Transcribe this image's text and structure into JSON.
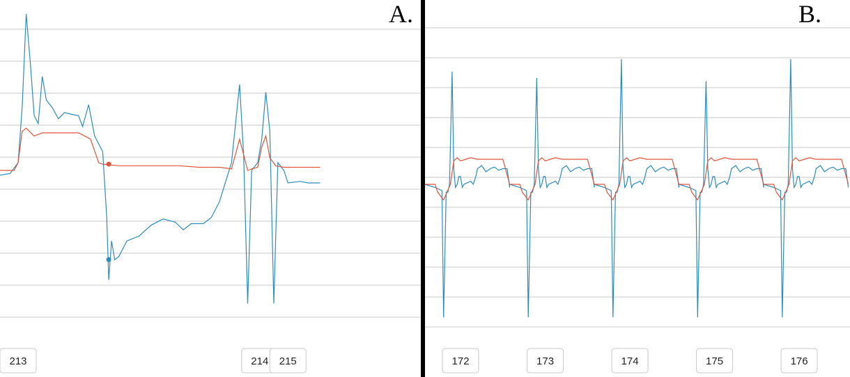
{
  "chart_data": [
    {
      "type": "line",
      "panel_label": "A.",
      "grid": true,
      "colors": {
        "blue": "#2b8cbe",
        "red": "#e0543a",
        "grid": "#c8c8c8"
      },
      "tick_labels": [
        "213",
        "214",
        "215"
      ],
      "tick_positions": [
        0.0,
        0.6,
        0.67
      ],
      "x_range": [
        -0.045,
        1.0
      ],
      "y_range": [
        -1.0,
        1.0
      ],
      "series": [
        {
          "color": "#2b8cbe",
          "points": [
            [
              -0.045,
              -0.03
            ],
            [
              -0.02,
              -0.02
            ],
            [
              0.0,
              0.05
            ],
            [
              0.01,
              0.4
            ],
            [
              0.02,
              1.0
            ],
            [
              0.03,
              0.7
            ],
            [
              0.04,
              0.35
            ],
            [
              0.05,
              0.3
            ],
            [
              0.06,
              0.6
            ],
            [
              0.07,
              0.45
            ],
            [
              0.085,
              0.4
            ],
            [
              0.1,
              0.33
            ],
            [
              0.115,
              0.37
            ],
            [
              0.13,
              0.36
            ],
            [
              0.15,
              0.35
            ],
            [
              0.16,
              0.28
            ],
            [
              0.175,
              0.42
            ],
            [
              0.19,
              0.22
            ],
            [
              0.21,
              0.12
            ],
            [
              0.22,
              -0.3
            ],
            [
              0.225,
              -0.7
            ],
            [
              0.232,
              -0.45
            ],
            [
              0.24,
              -0.57
            ],
            [
              0.25,
              -0.55
            ],
            [
              0.27,
              -0.45
            ],
            [
              0.3,
              -0.42
            ],
            [
              0.33,
              -0.35
            ],
            [
              0.36,
              -0.31
            ],
            [
              0.39,
              -0.33
            ],
            [
              0.41,
              -0.38
            ],
            [
              0.43,
              -0.34
            ],
            [
              0.46,
              -0.34
            ],
            [
              0.48,
              -0.3
            ],
            [
              0.5,
              -0.2
            ],
            [
              0.53,
              0.05
            ],
            [
              0.55,
              0.55
            ],
            [
              0.56,
              0.1
            ],
            [
              0.57,
              -0.85
            ],
            [
              0.58,
              0.0
            ],
            [
              0.595,
              0.05
            ],
            [
              0.605,
              0.2
            ],
            [
              0.615,
              0.5
            ],
            [
              0.625,
              0.25
            ],
            [
              0.635,
              -0.85
            ],
            [
              0.645,
              0.05
            ],
            [
              0.66,
              0.0
            ],
            [
              0.67,
              -0.08
            ],
            [
              0.7,
              -0.07
            ],
            [
              0.72,
              -0.08
            ],
            [
              0.75,
              -0.08
            ]
          ]
        },
        {
          "color": "#e0543a",
          "points": [
            [
              -0.045,
              0.0
            ],
            [
              -0.01,
              0.0
            ],
            [
              0.0,
              0.05
            ],
            [
              0.01,
              0.25
            ],
            [
              0.02,
              0.27
            ],
            [
              0.04,
              0.22
            ],
            [
              0.06,
              0.24
            ],
            [
              0.1,
              0.24
            ],
            [
              0.15,
              0.24
            ],
            [
              0.18,
              0.2
            ],
            [
              0.2,
              0.05
            ],
            [
              0.21,
              0.04
            ],
            [
              0.25,
              0.03
            ],
            [
              0.3,
              0.03
            ],
            [
              0.35,
              0.03
            ],
            [
              0.4,
              0.03
            ],
            [
              0.45,
              0.02
            ],
            [
              0.5,
              0.02
            ],
            [
              0.53,
              0.01
            ],
            [
              0.55,
              0.2
            ],
            [
              0.56,
              0.1
            ],
            [
              0.57,
              0.0
            ],
            [
              0.58,
              0.01
            ],
            [
              0.595,
              0.02
            ],
            [
              0.605,
              0.15
            ],
            [
              0.615,
              0.22
            ],
            [
              0.625,
              0.08
            ],
            [
              0.64,
              0.03
            ],
            [
              0.66,
              0.02
            ],
            [
              0.7,
              0.02
            ],
            [
              0.75,
              0.02
            ]
          ],
          "markers": [
            [
              0.225,
              0.04
            ]
          ]
        }
      ],
      "blue_markers": [
        [
          0.225,
          -0.57
        ]
      ]
    },
    {
      "type": "line",
      "panel_label": "B.",
      "grid": true,
      "colors": {
        "blue": "#2b8cbe",
        "red": "#e0543a",
        "grid": "#c8c8c8"
      },
      "tick_labels": [
        "172",
        "173",
        "174",
        "175",
        "176"
      ],
      "tick_positions": [
        0.0,
        1.0,
        2.0,
        3.0,
        4.0
      ],
      "x_range": [
        -0.42,
        4.6
      ],
      "y_range": [
        -1.0,
        1.0
      ],
      "series": [
        {
          "color": "#2b8cbe",
          "cycle_shape": [
            [
              -0.42,
              0.0
            ],
            [
              -0.3,
              -0.02
            ],
            [
              -0.22,
              -0.04
            ],
            [
              -0.2,
              -0.85
            ],
            [
              -0.17,
              -0.05
            ],
            [
              -0.15,
              -0.05
            ],
            [
              -0.13,
              0.0
            ],
            [
              -0.1,
              0.35
            ],
            [
              -0.08,
              0.1
            ],
            [
              -0.06,
              -0.02
            ],
            [
              -0.04,
              0.0
            ],
            [
              -0.02,
              0.05
            ],
            [
              0.0,
              0.05
            ],
            [
              0.02,
              -0.02
            ],
            [
              0.04,
              0.0
            ],
            [
              0.08,
              0.01
            ],
            [
              0.12,
              0.02
            ],
            [
              0.15,
              0.0
            ],
            [
              0.18,
              0.05
            ],
            [
              0.2,
              0.1
            ],
            [
              0.25,
              0.12
            ],
            [
              0.3,
              0.08
            ],
            [
              0.35,
              0.1
            ],
            [
              0.4,
              0.11
            ],
            [
              0.45,
              0.09
            ],
            [
              0.5,
              0.1
            ],
            [
              0.55,
              0.1
            ],
            [
              0.58,
              -0.02
            ]
          ],
          "cycles": [
            -0.4,
            0.6,
            1.6,
            2.6,
            3.6
          ],
          "peak_heights": [
            0.72,
            0.68,
            0.8,
            0.66,
            0.8
          ]
        },
        {
          "color": "#e0543a",
          "cycle_shape": [
            [
              -0.42,
              0.0
            ],
            [
              -0.3,
              0.0
            ],
            [
              -0.27,
              -0.05
            ],
            [
              -0.2,
              -0.1
            ],
            [
              -0.12,
              0.0
            ],
            [
              -0.08,
              0.15
            ],
            [
              -0.04,
              0.17
            ],
            [
              0.0,
              0.15
            ],
            [
              0.06,
              0.16
            ],
            [
              0.12,
              0.17
            ],
            [
              0.2,
              0.16
            ],
            [
              0.3,
              0.16
            ],
            [
              0.4,
              0.16
            ],
            [
              0.5,
              0.16
            ],
            [
              0.58,
              0.0
            ]
          ],
          "cycles": [
            -0.4,
            0.6,
            1.6,
            2.6,
            3.6
          ]
        }
      ]
    }
  ]
}
